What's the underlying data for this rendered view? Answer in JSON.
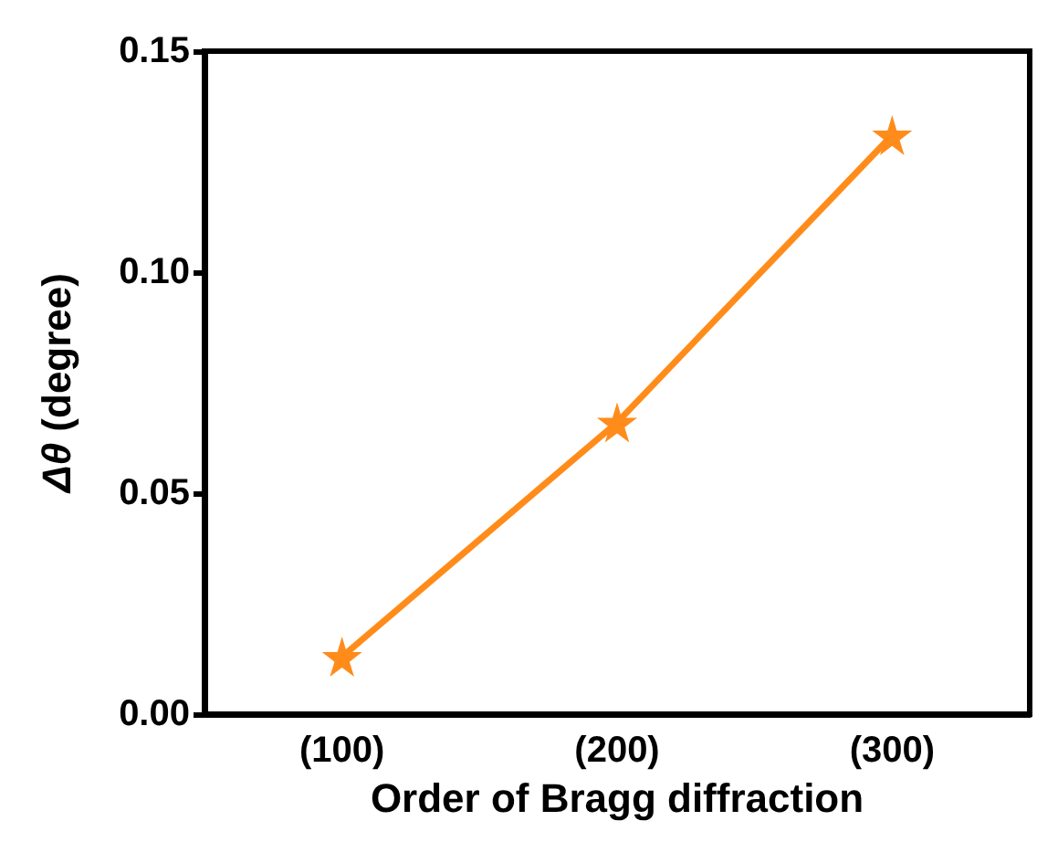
{
  "chart_data": {
    "type": "line",
    "xlabel": "Order of Bragg diffraction",
    "ylabel": "Δθ (degree)",
    "categories": [
      "(100)",
      "(200)",
      "(300)"
    ],
    "series": [
      {
        "color": "#ff8c1a",
        "values": [
          0.013,
          0.066,
          0.131
        ]
      }
    ],
    "ylim": [
      0,
      0.15
    ],
    "yticks": [
      {
        "value": 0,
        "label": "0.00"
      },
      {
        "value": 0.05,
        "label": "0.05"
      },
      {
        "value": 0.1,
        "label": "0.10"
      },
      {
        "value": 0.15,
        "label": "0.15"
      }
    ],
    "marker": "star",
    "line_style": "solid",
    "grid": false
  }
}
